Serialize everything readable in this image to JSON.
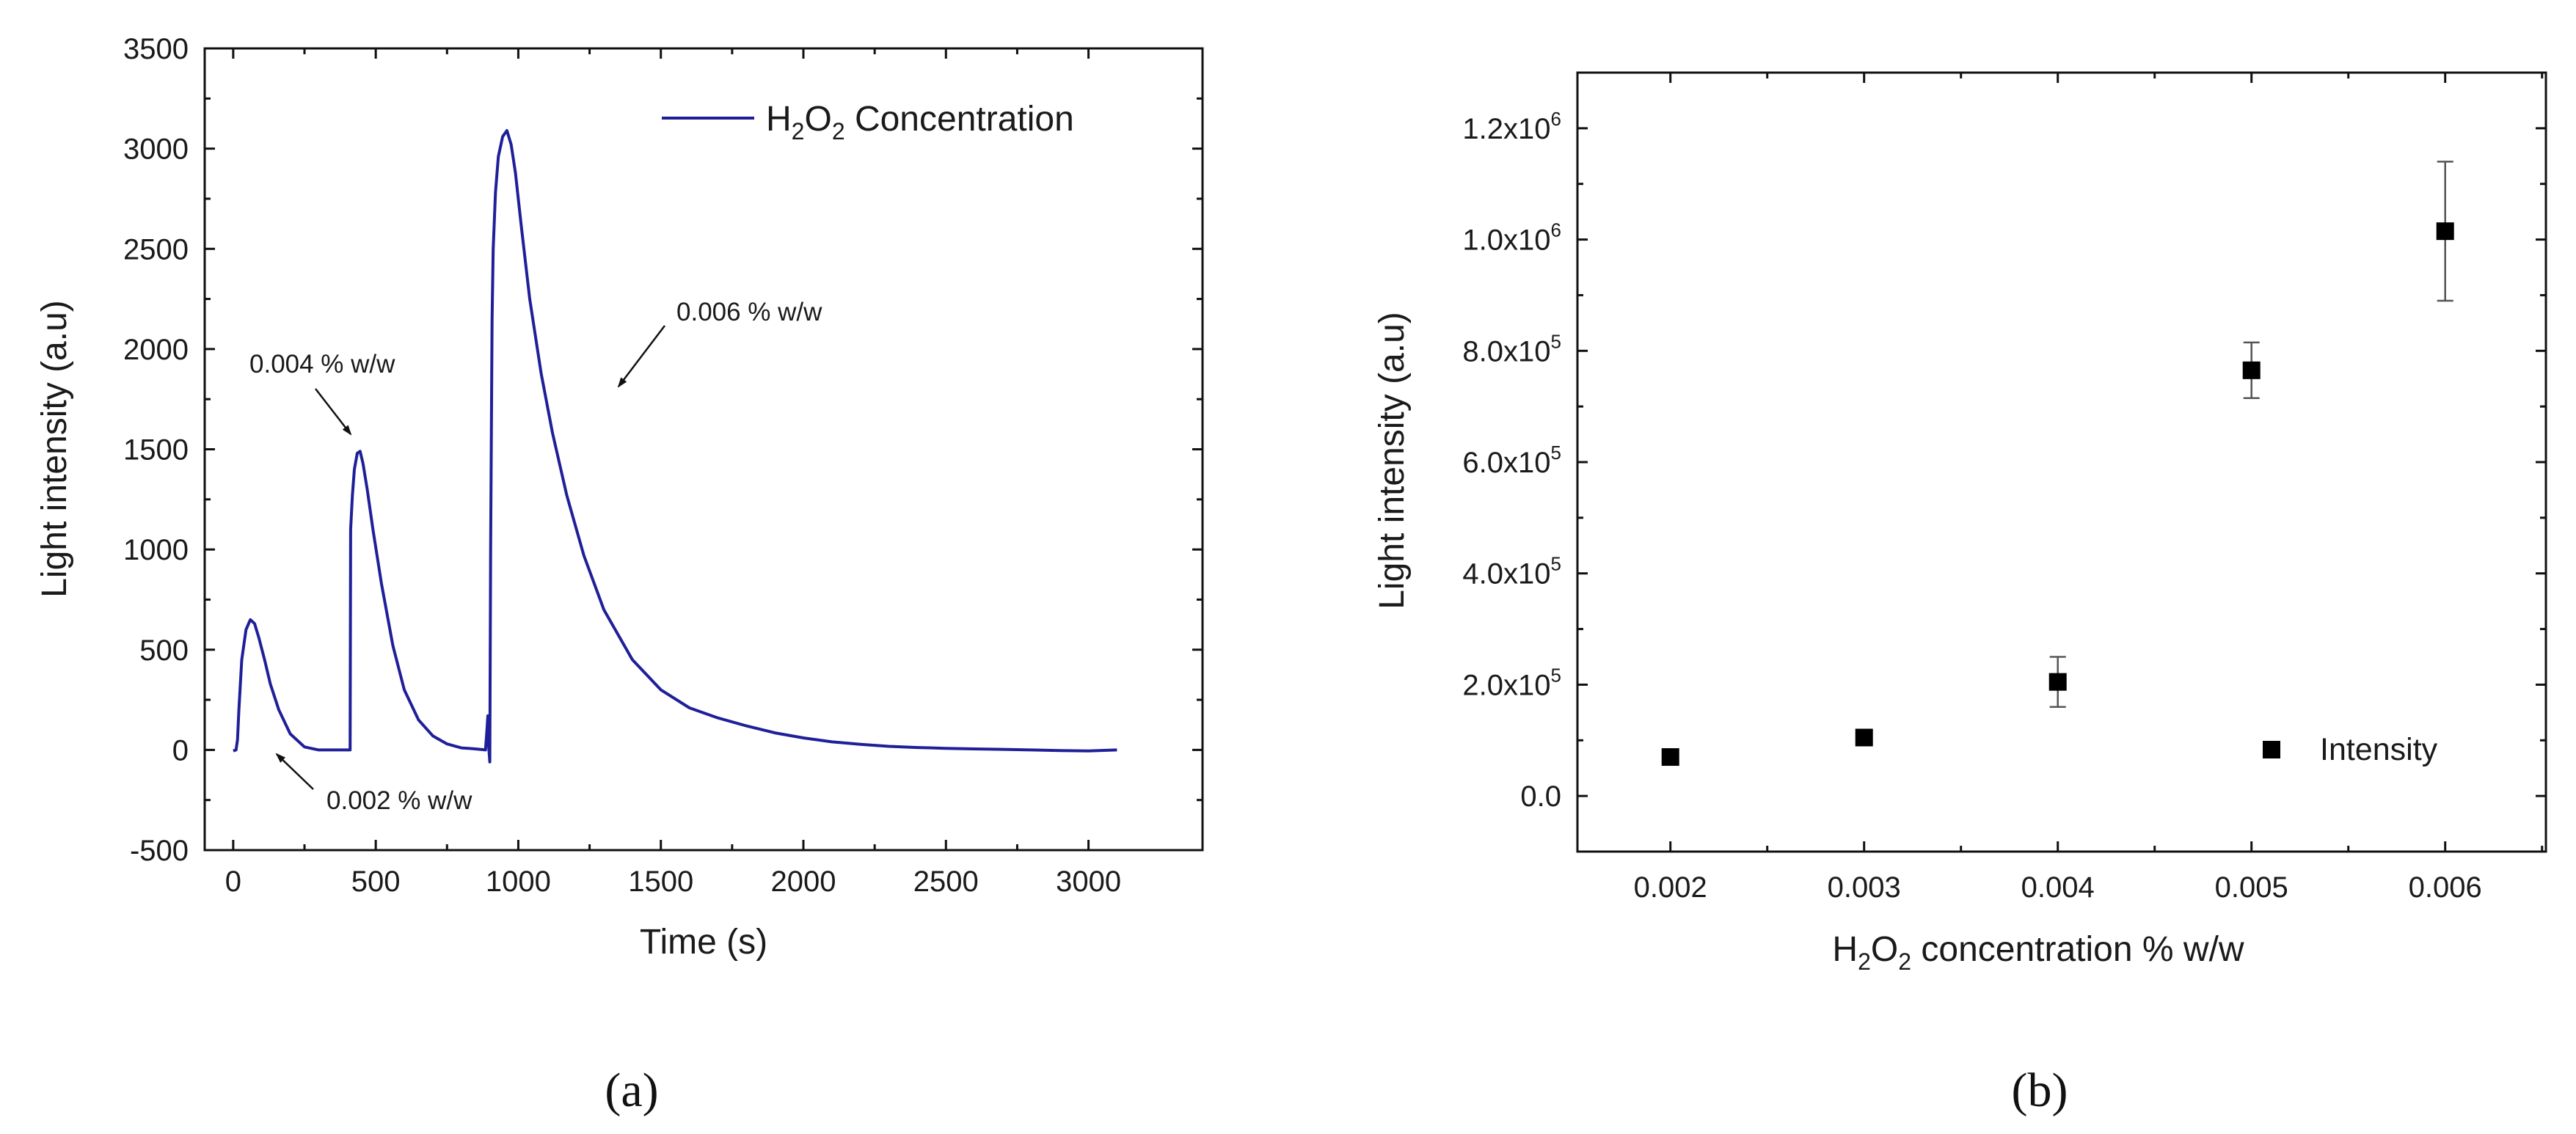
{
  "colors": {
    "curve": "#1f1f99",
    "marker": "#000000",
    "axis": "#111111"
  },
  "chart_data": [
    {
      "id": "a",
      "panel_label": "(a)",
      "type": "line",
      "title": "",
      "xlabel": "Time (s)",
      "ylabel": "Light intensity (a.u)",
      "xlim": [
        -100,
        3400
      ],
      "ylim": [
        -500,
        3500
      ],
      "xticks": [
        0,
        500,
        1000,
        1500,
        2000,
        2500,
        3000
      ],
      "yticks": [
        -500,
        0,
        500,
        1000,
        1500,
        2000,
        2500,
        3000,
        3500
      ],
      "grid": false,
      "legend": {
        "position": "top-right",
        "label_main": "H",
        "label_sub1": "2",
        "label_mid": "O",
        "label_sub2": "2",
        "label_tail": " Concentration"
      },
      "series": [
        {
          "name": "H2O2 Concentration",
          "x": [
            0,
            10,
            15,
            20,
            30,
            45,
            60,
            75,
            90,
            110,
            130,
            160,
            200,
            250,
            300,
            350,
            410,
            412,
            418,
            425,
            435,
            445,
            455,
            470,
            490,
            520,
            560,
            600,
            650,
            700,
            750,
            800,
            850,
            885,
            890,
            893,
            896,
            900,
            903,
            908,
            912,
            920,
            930,
            945,
            960,
            975,
            990,
            1010,
            1040,
            1080,
            1120,
            1170,
            1230,
            1300,
            1400,
            1500,
            1600,
            1700,
            1800,
            1900,
            2000,
            2100,
            2200,
            2300,
            2400,
            2500,
            2600,
            2700,
            2800,
            2900,
            3000,
            3100
          ],
          "y": [
            -5,
            0,
            50,
            200,
            450,
            600,
            650,
            630,
            560,
            450,
            330,
            200,
            80,
            15,
            0,
            0,
            0,
            1100,
            1270,
            1400,
            1480,
            1490,
            1430,
            1300,
            1100,
            830,
            520,
            300,
            150,
            70,
            30,
            10,
            5,
            0,
            100,
            170,
            20,
            -60,
            1000,
            2150,
            2500,
            2780,
            2960,
            3060,
            3090,
            3020,
            2880,
            2620,
            2250,
            1880,
            1580,
            1270,
            970,
            700,
            450,
            300,
            210,
            160,
            120,
            85,
            60,
            40,
            28,
            18,
            12,
            8,
            5,
            3,
            0,
            -3,
            -5,
            0
          ]
        }
      ],
      "annotations": [
        {
          "text": "0.004 % w/w"
        },
        {
          "text": "0.006 % w/w"
        },
        {
          "text": "0.002 % w/w"
        }
      ]
    },
    {
      "id": "b",
      "panel_label": "(b)",
      "type": "scatter",
      "title": "",
      "xlabel_parts": {
        "a": "H",
        "sub1": "2",
        "b": "O",
        "sub2": "2",
        "c": " concentration % w/w"
      },
      "ylabel": "Light intensity (a.u)",
      "xlim": [
        0.00152,
        0.00652
      ],
      "ylim": [
        -100000,
        1300000
      ],
      "xticks": [
        0.002,
        0.003,
        0.004,
        0.005,
        0.006
      ],
      "xtick_labels": [
        "0.002",
        "0.003",
        "0.004",
        "0.005",
        "0.006"
      ],
      "yticks": [
        0,
        200000,
        400000,
        600000,
        800000,
        1000000,
        1200000
      ],
      "ytick_labels": [
        {
          "base": "0.0",
          "exp": ""
        },
        {
          "base": "2.0x10",
          "exp": "5"
        },
        {
          "base": "4.0x10",
          "exp": "5"
        },
        {
          "base": "6.0x10",
          "exp": "5"
        },
        {
          "base": "8.0x10",
          "exp": "5"
        },
        {
          "base": "1.0x10",
          "exp": "6"
        },
        {
          "base": "1.2x10",
          "exp": "6"
        }
      ],
      "grid": false,
      "legend": {
        "position": "bottom-right",
        "label": "Intensity"
      },
      "series": [
        {
          "name": "Intensity",
          "x": [
            0.002,
            0.003,
            0.004,
            0.005,
            0.006
          ],
          "y": [
            70000,
            105000,
            205000,
            765000,
            1015000
          ],
          "yerr": [
            0,
            0,
            45000,
            50000,
            125000
          ]
        }
      ]
    }
  ]
}
